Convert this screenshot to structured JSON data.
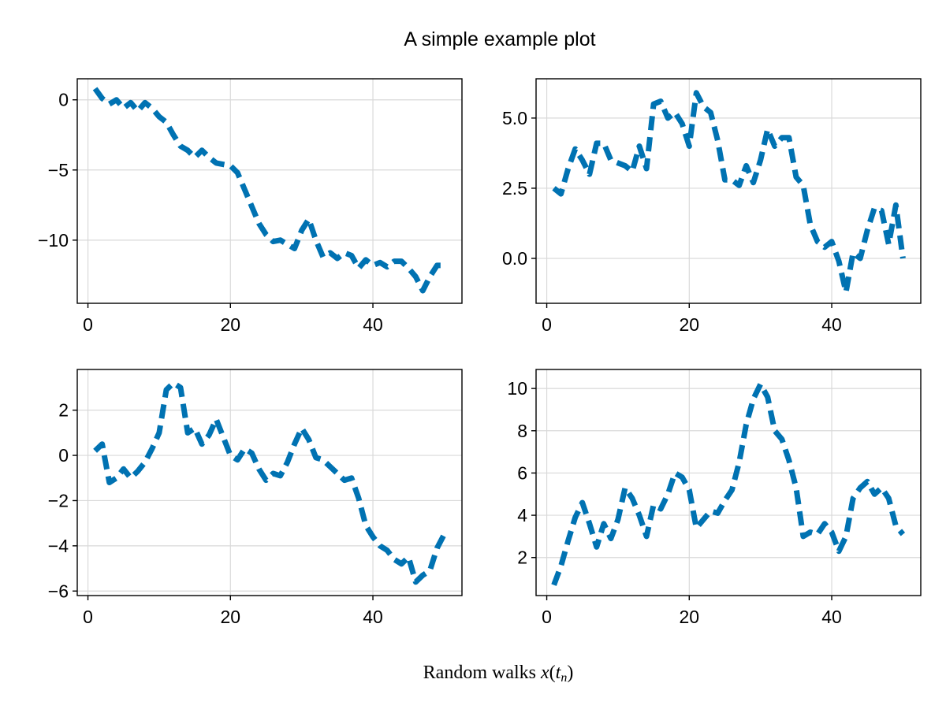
{
  "figure": {
    "title": "A simple example plot",
    "xlabel_main": "Random walks ",
    "xlabel_math": "x",
    "xlabel_open": "(",
    "xlabel_t": "t",
    "xlabel_sub": "n",
    "xlabel_close": ")"
  },
  "colors": {
    "line": "#0072b2",
    "grid": "#d9d9d9",
    "frame": "#000000"
  },
  "chart_data": [
    {
      "type": "line",
      "panel": "top-left",
      "line_style": "dashed",
      "grid": true,
      "xlim": [
        -1.5,
        52.5
      ],
      "ylim": [
        -14.5,
        1.5
      ],
      "xticks": [
        0,
        20,
        40
      ],
      "xtick_labels": [
        "0",
        "20",
        "40"
      ],
      "yticks": [
        0,
        -5,
        -10
      ],
      "ytick_labels": [
        "0",
        "−5",
        "−10"
      ],
      "x": [
        1,
        2,
        3,
        4,
        5,
        6,
        7,
        8,
        9,
        10,
        11,
        12,
        13,
        14,
        15,
        16,
        17,
        18,
        19,
        20,
        21,
        22,
        23,
        24,
        25,
        26,
        27,
        28,
        29,
        30,
        31,
        32,
        33,
        34,
        35,
        36,
        37,
        38,
        39,
        40,
        41,
        42,
        43,
        44,
        45,
        46,
        47,
        48,
        49,
        50
      ],
      "y": [
        0.8,
        0.1,
        -0.3,
        0.0,
        -0.6,
        -0.2,
        -0.8,
        -0.2,
        -0.6,
        -1.2,
        -1.6,
        -2.5,
        -3.3,
        -3.6,
        -4.1,
        -3.6,
        -4.1,
        -4.5,
        -4.6,
        -4.7,
        -5.2,
        -6.4,
        -7.6,
        -8.8,
        -9.6,
        -10.1,
        -10.0,
        -10.3,
        -10.6,
        -9.3,
        -8.5,
        -10.0,
        -11.2,
        -10.9,
        -11.3,
        -10.9,
        -11.1,
        -12.0,
        -11.4,
        -11.8,
        -11.6,
        -11.9,
        -11.5,
        -11.5,
        -12.0,
        -12.6,
        -13.6,
        -12.6,
        -11.8,
        -11.8
      ]
    },
    {
      "type": "line",
      "panel": "top-right",
      "line_style": "dashed",
      "grid": true,
      "xlim": [
        -1.5,
        52.5
      ],
      "ylim": [
        -1.6,
        6.4
      ],
      "xticks": [
        0,
        20,
        40
      ],
      "xtick_labels": [
        "0",
        "20",
        "40"
      ],
      "yticks": [
        5.0,
        2.5,
        0.0
      ],
      "ytick_labels": [
        "5.0",
        "2.5",
        "0.0"
      ],
      "x": [
        1,
        2,
        3,
        4,
        5,
        6,
        7,
        8,
        9,
        10,
        11,
        12,
        13,
        14,
        15,
        16,
        17,
        18,
        19,
        20,
        21,
        22,
        23,
        24,
        25,
        26,
        27,
        28,
        29,
        30,
        31,
        32,
        33,
        34,
        35,
        36,
        37,
        38,
        39,
        40,
        41,
        42,
        43,
        44,
        45,
        46,
        47,
        48,
        49,
        50
      ],
      "y": [
        2.5,
        2.3,
        3.2,
        3.9,
        3.5,
        3.0,
        4.1,
        4.1,
        3.5,
        3.4,
        3.3,
        3.1,
        4.0,
        3.2,
        5.5,
        5.6,
        5.0,
        5.2,
        4.8,
        4.0,
        5.9,
        5.4,
        5.2,
        4.2,
        2.8,
        2.8,
        2.6,
        3.3,
        2.7,
        3.5,
        4.6,
        4.0,
        4.3,
        4.3,
        2.9,
        2.6,
        1.2,
        0.6,
        0.4,
        0.6,
        -0.1,
        -1.2,
        0.2,
        0.0,
        1.0,
        1.8,
        1.7,
        0.5,
        1.9,
        0.0
      ]
    },
    {
      "type": "line",
      "panel": "bottom-left",
      "line_style": "dashed",
      "grid": true,
      "xlim": [
        -1.5,
        52.5
      ],
      "ylim": [
        -6.2,
        3.8
      ],
      "xticks": [
        0,
        20,
        40
      ],
      "xtick_labels": [
        "0",
        "20",
        "40"
      ],
      "yticks": [
        2,
        0,
        -2,
        -4,
        -6
      ],
      "ytick_labels": [
        "2",
        "0",
        "−2",
        "−4",
        "−6"
      ],
      "x": [
        1,
        2,
        3,
        4,
        5,
        6,
        7,
        8,
        9,
        10,
        11,
        12,
        13,
        14,
        15,
        16,
        17,
        18,
        19,
        20,
        21,
        22,
        23,
        24,
        25,
        26,
        27,
        28,
        29,
        30,
        31,
        32,
        33,
        34,
        35,
        36,
        37,
        38,
        39,
        40,
        41,
        42,
        43,
        44,
        45,
        46,
        47,
        48,
        49,
        50
      ],
      "y": [
        0.2,
        0.5,
        -1.2,
        -1.0,
        -0.6,
        -1.0,
        -0.7,
        -0.3,
        0.3,
        1.0,
        2.9,
        3.2,
        3.0,
        1.0,
        1.2,
        0.5,
        0.9,
        1.6,
        0.8,
        0.0,
        -0.2,
        0.3,
        0.1,
        -0.6,
        -1.1,
        -0.8,
        -0.9,
        -0.3,
        0.5,
        1.2,
        0.7,
        -0.1,
        -0.2,
        -0.5,
        -0.8,
        -1.1,
        -1.0,
        -1.9,
        -3.1,
        -3.6,
        -4.0,
        -4.2,
        -4.6,
        -4.8,
        -4.5,
        -5.6,
        -5.3,
        -5.1,
        -4.1,
        -3.5
      ]
    },
    {
      "type": "line",
      "panel": "bottom-right",
      "line_style": "dashed",
      "grid": true,
      "xlim": [
        -1.5,
        52.5
      ],
      "ylim": [
        0.2,
        10.9
      ],
      "xticks": [
        0,
        20,
        40
      ],
      "xtick_labels": [
        "0",
        "20",
        "40"
      ],
      "yticks": [
        10,
        8,
        6,
        4,
        2
      ],
      "ytick_labels": [
        "10",
        "8",
        "6",
        "4",
        "2"
      ],
      "x": [
        1,
        2,
        3,
        4,
        5,
        6,
        7,
        8,
        9,
        10,
        11,
        12,
        13,
        14,
        15,
        16,
        17,
        18,
        19,
        20,
        21,
        22,
        23,
        24,
        25,
        26,
        27,
        28,
        29,
        30,
        31,
        32,
        33,
        34,
        35,
        36,
        37,
        38,
        39,
        40,
        41,
        42,
        43,
        44,
        45,
        46,
        47,
        48,
        49,
        50
      ],
      "y": [
        0.7,
        1.6,
        2.8,
        3.9,
        4.6,
        3.6,
        2.5,
        3.6,
        2.9,
        3.8,
        5.3,
        4.8,
        4.0,
        3.0,
        4.5,
        4.3,
        5.0,
        6.0,
        5.8,
        5.2,
        3.4,
        3.8,
        4.2,
        4.1,
        4.7,
        5.2,
        6.5,
        8.3,
        9.5,
        10.2,
        9.6,
        8.0,
        7.6,
        6.6,
        5.3,
        3.0,
        3.2,
        3.1,
        3.6,
        3.2,
        2.3,
        3.0,
        4.8,
        5.3,
        5.6,
        5.0,
        5.3,
        4.8,
        3.5,
        3.1
      ]
    }
  ]
}
